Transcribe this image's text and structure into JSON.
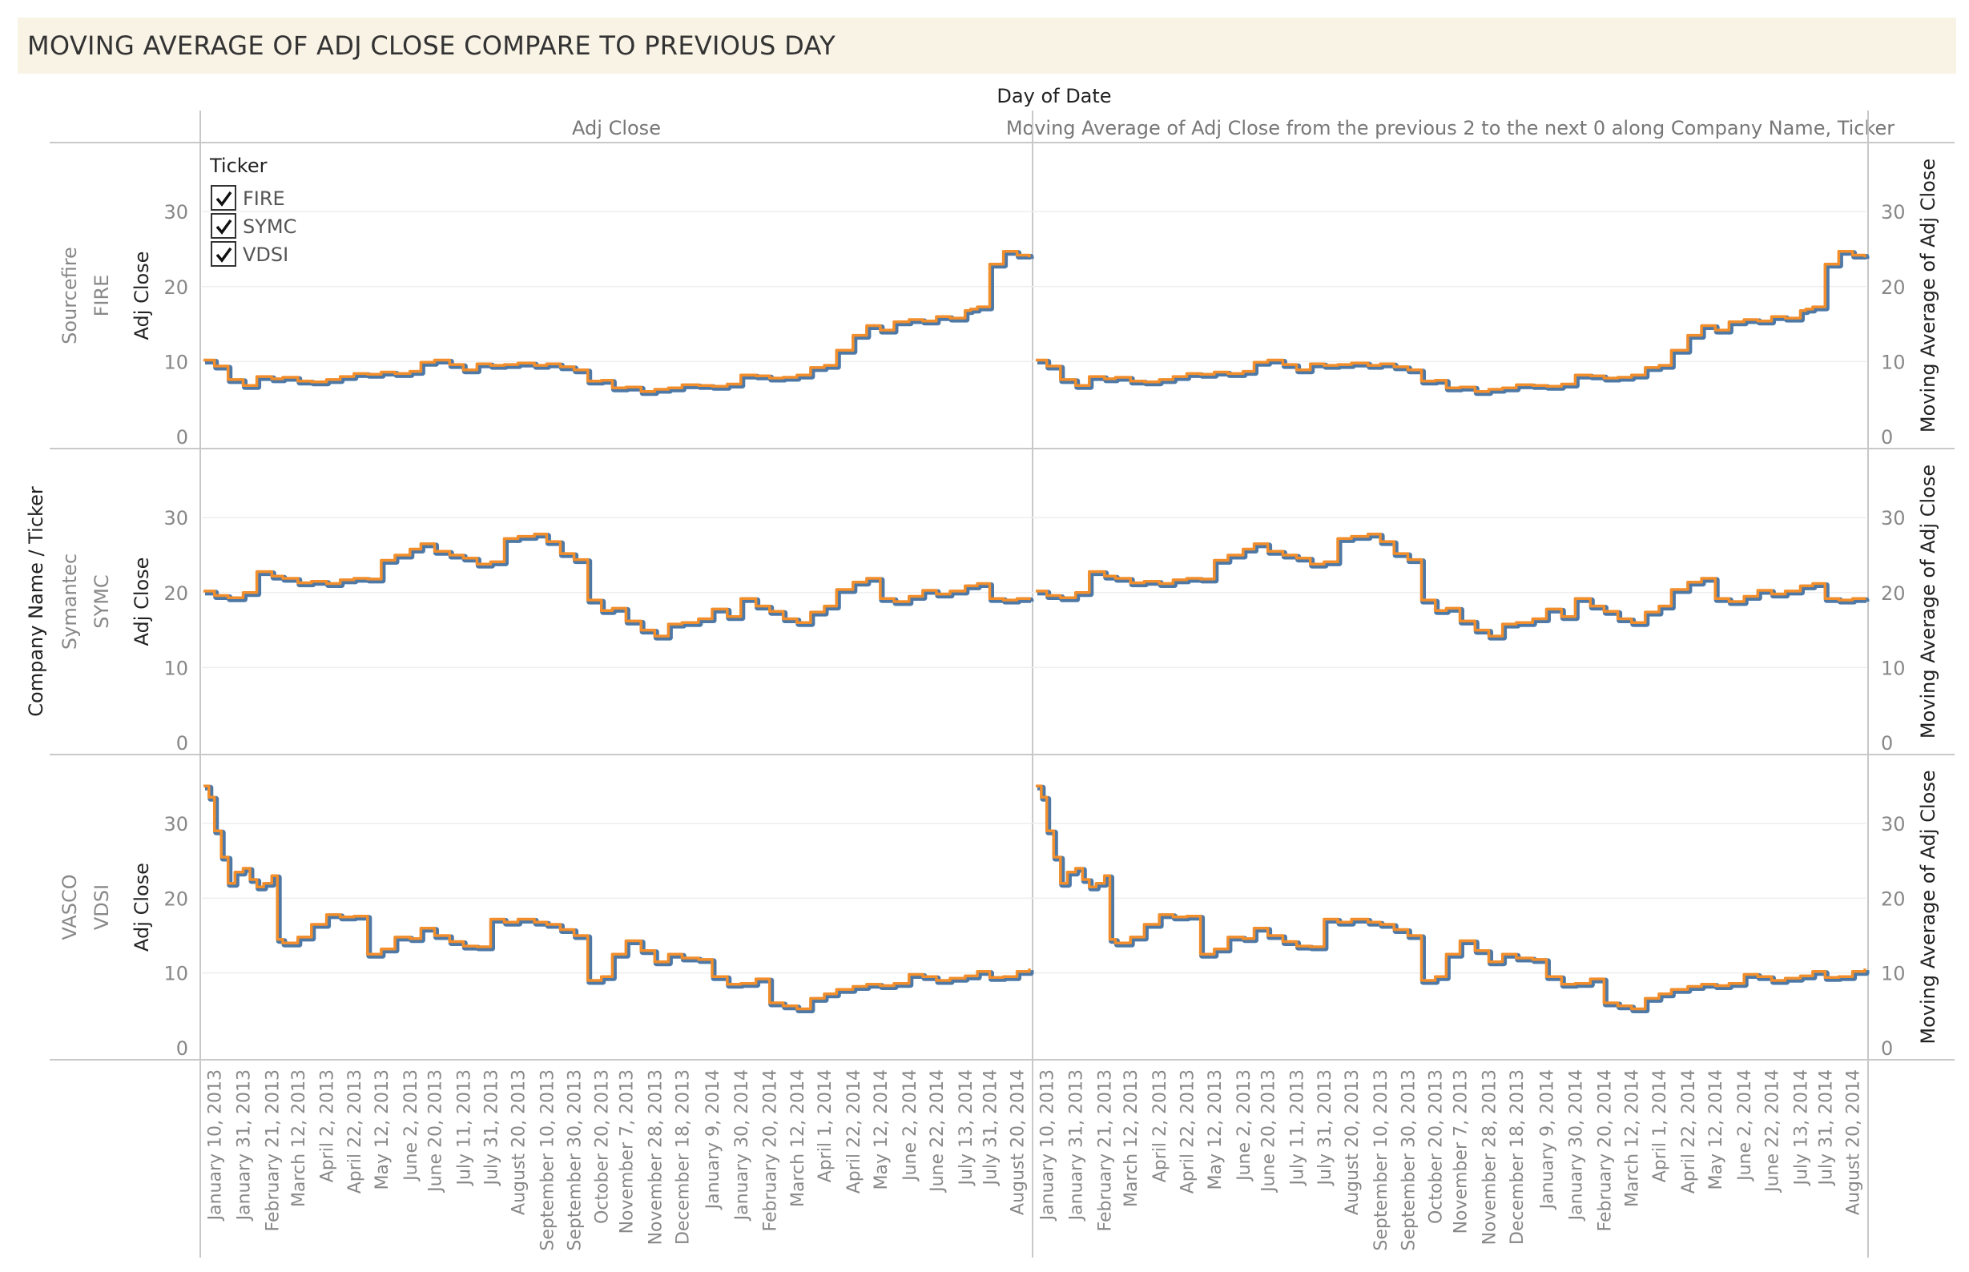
{
  "title": "MOVING AVERAGE OF ADJ CLOSE COMPARE TO PREVIOUS DAY",
  "column_axis_title": "Day of Date",
  "row_axis_title": "Company Name  /  Ticker",
  "legend": {
    "title": "Ticker",
    "items": [
      {
        "label": "FIRE",
        "checked": true
      },
      {
        "label": "SYMC",
        "checked": true
      },
      {
        "label": "VDSI",
        "checked": true
      }
    ]
  },
  "colors": {
    "line_outer": "#4e79a7",
    "line_inner": "#f28e2b",
    "title_bg": "#f9f3e6",
    "grid": "#eeeeee",
    "border": "#c8c8c8"
  },
  "chart_data": {
    "type": "line",
    "columns": [
      {
        "header": "Adj Close",
        "axis_label": "Adj Close",
        "axis_side": "left"
      },
      {
        "header": "Moving Average of Adj Close from the previous 2 to the next 0 along Company Name, Ticker",
        "axis_label": "Moving Average of Adj Close",
        "axis_side": "right"
      }
    ],
    "rows": [
      {
        "company": "Sourcefire",
        "ticker": "FIRE"
      },
      {
        "company": "Symantec",
        "ticker": "SYMC"
      },
      {
        "company": "VASCO",
        "ticker": "VDSI"
      }
    ],
    "y_ticks": [
      0,
      10,
      20,
      30
    ],
    "ylim": [
      0,
      36
    ],
    "x_range": [
      "2013-01-02",
      "2014-08-29"
    ],
    "x_ticks": [
      "January 10, 2013",
      "January 31, 2013",
      "February 21, 2013",
      "March 12, 2013",
      "April 2, 2013",
      "April 22, 2013",
      "May 12, 2013",
      "June 2, 2013",
      "June 20, 2013",
      "July 11, 2013",
      "July 31, 2013",
      "August 20, 2013",
      "September 10, 2013",
      "September 30, 2013",
      "October 20, 2013",
      "November 7, 2013",
      "November 28, 2013",
      "December 18, 2013",
      "January 9, 2014",
      "January 30, 2014",
      "February 20, 2014",
      "March 12, 2014",
      "April 1, 2014",
      "April 22, 2014",
      "May 12, 2014",
      "June 2, 2014",
      "June 22, 2014",
      "July 13, 2014",
      "July 31, 2014",
      "August 20, 2014"
    ],
    "x_tick_dates": [
      "2013-01-10",
      "2013-01-31",
      "2013-02-21",
      "2013-03-12",
      "2013-04-02",
      "2013-04-22",
      "2013-05-12",
      "2013-06-02",
      "2013-06-20",
      "2013-07-11",
      "2013-07-31",
      "2013-08-20",
      "2013-09-10",
      "2013-09-30",
      "2013-10-20",
      "2013-11-07",
      "2013-11-28",
      "2013-12-18",
      "2014-01-09",
      "2014-01-30",
      "2014-02-20",
      "2014-03-12",
      "2014-04-01",
      "2014-04-22",
      "2014-05-12",
      "2014-06-02",
      "2014-06-22",
      "2014-07-13",
      "2014-07-31",
      "2014-08-20"
    ],
    "series": {
      "FIRE": {
        "x": [
          "2013-01-02",
          "2013-01-10",
          "2013-01-20",
          "2013-01-31",
          "2013-02-10",
          "2013-02-21",
          "2013-03-01",
          "2013-03-12",
          "2013-03-22",
          "2013-04-02",
          "2013-04-12",
          "2013-04-22",
          "2013-05-02",
          "2013-05-12",
          "2013-05-22",
          "2013-06-02",
          "2013-06-10",
          "2013-06-20",
          "2013-07-01",
          "2013-07-11",
          "2013-07-21",
          "2013-07-31",
          "2013-08-10",
          "2013-08-20",
          "2013-09-01",
          "2013-09-10",
          "2013-09-20",
          "2013-09-30",
          "2013-10-10",
          "2013-10-20",
          "2013-10-28",
          "2013-11-07",
          "2013-11-18",
          "2013-11-28",
          "2013-12-08",
          "2013-12-18",
          "2013-12-30",
          "2014-01-09",
          "2014-01-20",
          "2014-01-30",
          "2014-02-10",
          "2014-02-20",
          "2014-03-02",
          "2014-03-12",
          "2014-03-22",
          "2014-04-01",
          "2014-04-10",
          "2014-04-22",
          "2014-05-02",
          "2014-05-12",
          "2014-05-22",
          "2014-06-02",
          "2014-06-12",
          "2014-06-22",
          "2014-07-02",
          "2014-07-13",
          "2014-07-17",
          "2014-07-22",
          "2014-07-31",
          "2014-08-10",
          "2014-08-20",
          "2014-08-29"
        ],
        "y": [
          10.2,
          9.4,
          7.6,
          6.8,
          8.0,
          7.7,
          7.9,
          7.4,
          7.3,
          7.6,
          8.0,
          8.4,
          8.3,
          8.6,
          8.4,
          8.7,
          9.9,
          10.2,
          9.6,
          8.9,
          9.7,
          9.5,
          9.6,
          9.8,
          9.5,
          9.7,
          9.3,
          8.9,
          7.4,
          7.5,
          6.5,
          6.6,
          6.0,
          6.3,
          6.5,
          6.9,
          6.8,
          6.7,
          7.0,
          8.2,
          8.1,
          7.8,
          7.9,
          8.2,
          9.2,
          9.5,
          11.5,
          13.5,
          14.8,
          14.2,
          15.3,
          15.6,
          15.4,
          16.0,
          15.8,
          16.8,
          17.0,
          17.3,
          23.0,
          24.7,
          24.2,
          23.9
        ]
      },
      "SYMC": {
        "x": [
          "2013-01-02",
          "2013-01-10",
          "2013-01-20",
          "2013-01-31",
          "2013-02-10",
          "2013-02-21",
          "2013-03-01",
          "2013-03-12",
          "2013-03-22",
          "2013-04-02",
          "2013-04-12",
          "2013-04-22",
          "2013-05-02",
          "2013-05-12",
          "2013-05-22",
          "2013-06-02",
          "2013-06-10",
          "2013-06-20",
          "2013-07-01",
          "2013-07-11",
          "2013-07-21",
          "2013-07-31",
          "2013-08-10",
          "2013-08-20",
          "2013-09-01",
          "2013-09-10",
          "2013-09-20",
          "2013-09-30",
          "2013-10-10",
          "2013-10-20",
          "2013-10-28",
          "2013-11-07",
          "2013-11-18",
          "2013-11-28",
          "2013-12-08",
          "2013-12-18",
          "2013-12-30",
          "2014-01-09",
          "2014-01-20",
          "2014-01-30",
          "2014-02-10",
          "2014-02-20",
          "2014-03-02",
          "2014-03-12",
          "2014-03-22",
          "2014-04-01",
          "2014-04-10",
          "2014-04-22",
          "2014-05-02",
          "2014-05-12",
          "2014-05-22",
          "2014-06-02",
          "2014-06-12",
          "2014-06-22",
          "2014-07-02",
          "2014-07-13",
          "2014-07-22",
          "2014-07-31",
          "2014-08-10",
          "2014-08-20",
          "2014-08-29"
        ],
        "y": [
          20.2,
          19.6,
          19.3,
          20.0,
          22.8,
          22.2,
          21.9,
          21.3,
          21.5,
          21.2,
          21.7,
          21.9,
          21.8,
          24.3,
          25.0,
          25.8,
          26.5,
          25.5,
          25.0,
          24.6,
          23.8,
          24.1,
          27.2,
          27.5,
          27.8,
          26.8,
          25.2,
          24.4,
          19.0,
          17.6,
          17.9,
          16.2,
          15.0,
          14.2,
          15.8,
          16.0,
          16.5,
          17.8,
          16.8,
          19.2,
          18.2,
          17.5,
          16.5,
          16.0,
          17.4,
          18.2,
          20.4,
          21.4,
          21.9,
          19.2,
          18.8,
          19.5,
          20.3,
          19.8,
          20.2,
          20.9,
          21.2,
          19.2,
          19.0,
          19.2,
          19.0
        ]
      },
      "VDSI": {
        "x": [
          "2013-01-02",
          "2013-01-06",
          "2013-01-10",
          "2013-01-15",
          "2013-01-20",
          "2013-01-25",
          "2013-01-31",
          "2013-02-05",
          "2013-02-10",
          "2013-02-15",
          "2013-02-21",
          "2013-02-25",
          "2013-03-01",
          "2013-03-12",
          "2013-03-22",
          "2013-04-02",
          "2013-04-12",
          "2013-04-22",
          "2013-05-02",
          "2013-05-12",
          "2013-05-22",
          "2013-06-02",
          "2013-06-10",
          "2013-06-20",
          "2013-07-01",
          "2013-07-11",
          "2013-07-21",
          "2013-07-31",
          "2013-08-10",
          "2013-08-20",
          "2013-09-01",
          "2013-09-10",
          "2013-09-20",
          "2013-09-30",
          "2013-10-10",
          "2013-10-20",
          "2013-10-28",
          "2013-11-07",
          "2013-11-18",
          "2013-11-28",
          "2013-12-08",
          "2013-12-18",
          "2013-12-30",
          "2014-01-09",
          "2014-01-20",
          "2014-01-30",
          "2014-02-10",
          "2014-02-20",
          "2014-03-02",
          "2014-03-12",
          "2014-03-22",
          "2014-04-01",
          "2014-04-10",
          "2014-04-22",
          "2014-05-02",
          "2014-05-12",
          "2014-05-22",
          "2014-06-02",
          "2014-06-12",
          "2014-06-22",
          "2014-07-02",
          "2014-07-13",
          "2014-07-22",
          "2014-07-31",
          "2014-08-10",
          "2014-08-20",
          "2014-08-29"
        ],
        "y": [
          35.0,
          33.5,
          29.0,
          25.5,
          22.0,
          23.5,
          24.0,
          22.5,
          21.5,
          22.0,
          23.0,
          14.5,
          14.0,
          14.8,
          16.5,
          17.8,
          17.5,
          17.6,
          12.5,
          13.2,
          14.8,
          14.6,
          16.0,
          15.0,
          14.2,
          13.6,
          13.5,
          17.2,
          16.8,
          17.2,
          16.8,
          16.5,
          15.8,
          15.0,
          9.0,
          9.5,
          12.5,
          14.3,
          13.0,
          11.5,
          12.5,
          12.0,
          11.8,
          9.5,
          8.5,
          8.6,
          9.2,
          6.0,
          5.6,
          5.2,
          6.6,
          7.2,
          7.8,
          8.2,
          8.5,
          8.3,
          8.6,
          9.8,
          9.5,
          9.0,
          9.3,
          9.6,
          10.2,
          9.4,
          9.5,
          10.2,
          10.6
        ]
      }
    }
  }
}
